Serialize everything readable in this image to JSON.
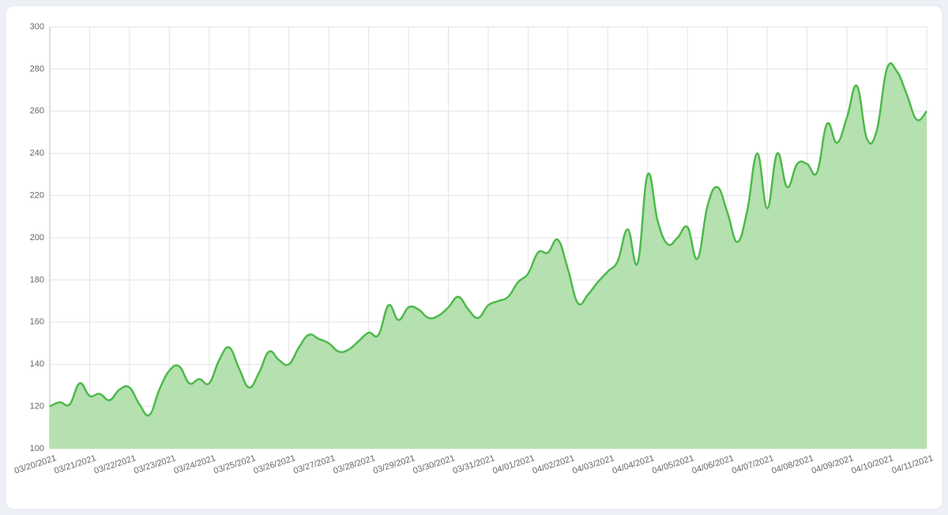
{
  "chart_data": {
    "type": "area",
    "categories": [
      "03/20/2021",
      null,
      null,
      null,
      "03/21/2021",
      null,
      null,
      null,
      "03/22/2021",
      null,
      null,
      null,
      "03/23/2021",
      null,
      null,
      null,
      "03/24/2021",
      null,
      null,
      null,
      "03/25/2021",
      null,
      null,
      null,
      "03/26/2021",
      null,
      null,
      null,
      "03/27/2021",
      null,
      null,
      null,
      "03/28/2021",
      null,
      null,
      null,
      "03/29/2021",
      null,
      null,
      null,
      "03/30/2021",
      null,
      null,
      null,
      "03/31/2021",
      null,
      null,
      null,
      "04/01/2021",
      null,
      null,
      null,
      "04/02/2021",
      null,
      null,
      null,
      "04/03/2021",
      null,
      null,
      null,
      "04/04/2021",
      null,
      null,
      null,
      "04/05/2021",
      null,
      null,
      null,
      "04/06/2021",
      null,
      null,
      null,
      "04/07/2021",
      null,
      null,
      null,
      "04/08/2021",
      null,
      null,
      null,
      "04/09/2021",
      null,
      null,
      null,
      "04/10/2021",
      null,
      null,
      null,
      "04/11/2021"
    ],
    "values": [
      120,
      122,
      121,
      131,
      125,
      126,
      123,
      128,
      129,
      121,
      116,
      128,
      137,
      139,
      131,
      133,
      131,
      142,
      148,
      138,
      129,
      136,
      146,
      142,
      140,
      148,
      154,
      152,
      150,
      146,
      147,
      151,
      155,
      154,
      168,
      161,
      167,
      166,
      162,
      163,
      167,
      172,
      166,
      162,
      168,
      170,
      172,
      179,
      183,
      193,
      193,
      199,
      185,
      169,
      173,
      179,
      184,
      189,
      204,
      188,
      230,
      208,
      197,
      200,
      205,
      190,
      215,
      224,
      212,
      198,
      213,
      240,
      214,
      240,
      224,
      235,
      235,
      231,
      254,
      245,
      257,
      272,
      247,
      251,
      280,
      279,
      268,
      256,
      260
    ],
    "color": "#4cba4c",
    "fill_color": "#b5e0af",
    "ylim": [
      100,
      300
    ],
    "yticks": [
      100,
      120,
      140,
      160,
      180,
      200,
      220,
      240,
      260,
      280,
      300
    ],
    "grid": true
  }
}
